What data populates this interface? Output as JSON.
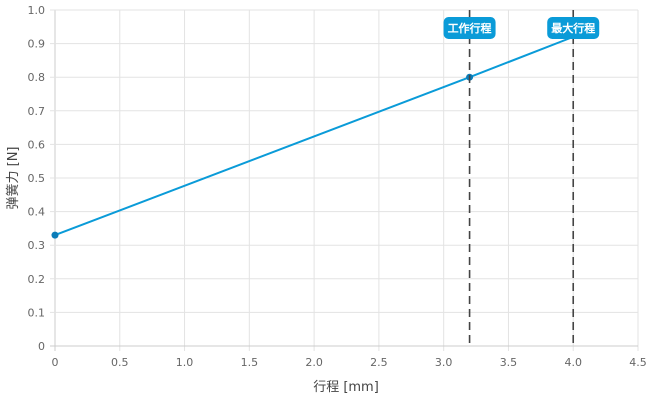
{
  "chart_data": {
    "type": "line",
    "title": "",
    "xlabel": "行程 [mm]",
    "ylabel": "弹簧力 [N]",
    "xlim": [
      0,
      4.5
    ],
    "ylim": [
      0,
      1.0
    ],
    "xticks": [
      "0",
      "0.5",
      "1.0",
      "1.5",
      "2.0",
      "2.5",
      "3.0",
      "3.5",
      "4.0",
      "4.5"
    ],
    "yticks": [
      "0",
      "0.1",
      "0.2",
      "0.3",
      "0.4",
      "0.5",
      "0.6",
      "0.7",
      "0.8",
      "0.9",
      "1.0"
    ],
    "grid": true,
    "series": [
      {
        "x": [
          0,
          3.2,
          4.0
        ],
        "y": [
          0.33,
          0.8,
          0.92
        ],
        "color": "#0a9bd8"
      }
    ],
    "markers": [
      {
        "x": 0,
        "y": 0.33
      },
      {
        "x": 3.2,
        "y": 0.8
      }
    ],
    "annotations": [
      {
        "x": 3.2,
        "label": "工作行程"
      },
      {
        "x": 4.0,
        "label": "最大行程"
      }
    ],
    "colors": {
      "line": "#0a9bd8",
      "marker": "#0b7cb8",
      "label_bg": "#0a9bd8",
      "vline": "#444444",
      "grid": "#e3e3e3"
    }
  }
}
